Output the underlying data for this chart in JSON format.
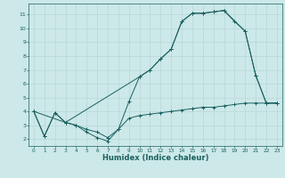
{
  "xlabel": "Humidex (Indice chaleur)",
  "bg_color": "#cce8e8",
  "grid_color": "#b8d8d8",
  "line_color": "#1a6060",
  "xlim": [
    -0.5,
    23.5
  ],
  "ylim": [
    1.5,
    11.8
  ],
  "xticks": [
    0,
    1,
    2,
    3,
    4,
    5,
    6,
    7,
    8,
    9,
    10,
    11,
    12,
    13,
    14,
    15,
    16,
    17,
    18,
    19,
    20,
    21,
    22,
    23
  ],
  "yticks": [
    2,
    3,
    4,
    5,
    6,
    7,
    8,
    9,
    10,
    11
  ],
  "line1_x": [
    0,
    1,
    2,
    3,
    4,
    5,
    6,
    7,
    8,
    9,
    10,
    11,
    12,
    13,
    14,
    15,
    16,
    17,
    18,
    19,
    20,
    21,
    22,
    23
  ],
  "line1_y": [
    4.0,
    2.2,
    3.9,
    3.2,
    3.0,
    2.5,
    2.1,
    1.85,
    2.7,
    4.7,
    6.5,
    7.0,
    7.8,
    8.5,
    10.5,
    11.1,
    11.1,
    11.2,
    11.3,
    10.5,
    9.8,
    6.6,
    4.6,
    4.6
  ],
  "line2_x": [
    0,
    3,
    10,
    11,
    12,
    13,
    14,
    15,
    16,
    17,
    18,
    20,
    21,
    22,
    23
  ],
  "line2_y": [
    4.0,
    3.2,
    6.5,
    7.0,
    7.8,
    8.5,
    10.5,
    11.1,
    11.1,
    11.2,
    11.3,
    9.8,
    6.6,
    4.6,
    4.6
  ],
  "line3_x": [
    0,
    1,
    2,
    3,
    4,
    5,
    6,
    7,
    8,
    9,
    10,
    11,
    12,
    13,
    14,
    15,
    16,
    17,
    18,
    19,
    20,
    21,
    22,
    23
  ],
  "line3_y": [
    4.0,
    2.2,
    3.9,
    3.2,
    3.0,
    2.7,
    2.5,
    2.1,
    2.7,
    3.5,
    3.7,
    3.8,
    3.9,
    4.0,
    4.1,
    4.2,
    4.3,
    4.3,
    4.4,
    4.5,
    4.6,
    4.6,
    4.6,
    4.6
  ]
}
